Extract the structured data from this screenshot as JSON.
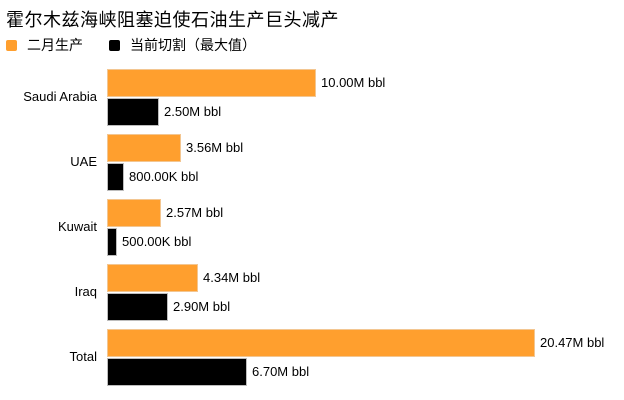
{
  "title": "霍尔木兹海峡阻塞迫使石油生产巨头减产",
  "legend": [
    {
      "label": "二月生产",
      "color": "#ff9f2e"
    },
    {
      "label": "当前切割（最大值）",
      "color": "#000000"
    }
  ],
  "chart_data": {
    "type": "bar",
    "orientation": "horizontal",
    "title": "霍尔木兹海峡阻塞迫使石油生产巨头减产",
    "categories": [
      "Saudi Arabia",
      "UAE",
      "Kuwait",
      "Iraq",
      "Total"
    ],
    "series": [
      {
        "name": "二月生产",
        "color": "#ff9f2e",
        "values": [
          10.0,
          3.56,
          2.57,
          4.34,
          20.47
        ],
        "labels": [
          "10.00M bbl",
          "3.56M bbl",
          "2.57M bbl",
          "4.34M bbl",
          "20.47M bbl"
        ]
      },
      {
        "name": "当前切割（最大值）",
        "color": "#000000",
        "values": [
          2.5,
          0.8,
          0.5,
          2.9,
          6.7
        ],
        "labels": [
          "2.50M bbl",
          "800.00K bbl",
          "500.00K bbl",
          "2.90M bbl",
          "6.70M bbl"
        ]
      }
    ],
    "unit": "M bbl",
    "xlabel": "",
    "ylabel": "",
    "xlim": [
      0,
      20.47
    ],
    "grid": false,
    "legend_position": "top-left"
  }
}
